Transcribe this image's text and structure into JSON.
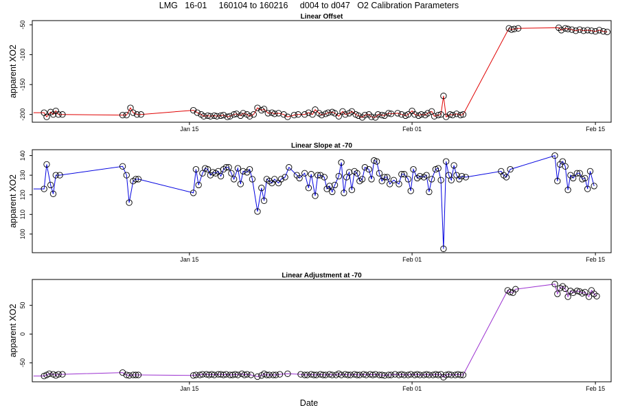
{
  "title": "LMG   16-01     160104 to 160216     d004 to d047   O2 Calibration Parameters",
  "xlabel": "Date",
  "colors": {
    "offset": "#e00000",
    "slope": "#0000e0",
    "adjustment": "#9b30d0"
  },
  "chart_data": [
    {
      "type": "line",
      "title": "Linear Offset",
      "ylabel": "apparent XO2",
      "x_ticks": [
        "Jan 15",
        "Feb 01",
        "Feb 15"
      ],
      "y_ticks": [
        -50,
        -100,
        -150,
        -200
      ],
      "xlim": [
        3.0,
        47.2
      ],
      "ylim": [
        -213,
        -43
      ],
      "grid": false,
      "legend": "none",
      "points": [
        [
          3.1,
          -197
        ],
        [
          3.9,
          -197
        ],
        [
          4.1,
          -204
        ],
        [
          4.4,
          -196
        ],
        [
          4.6,
          -200
        ],
        [
          4.8,
          -194
        ],
        [
          5.0,
          -200
        ],
        [
          5.3,
          -200
        ],
        [
          9.9,
          -201
        ],
        [
          10.2,
          -201
        ],
        [
          10.5,
          -189
        ],
        [
          10.7,
          -197
        ],
        [
          11.0,
          -200
        ],
        [
          11.3,
          -200
        ],
        [
          15.3,
          -193
        ],
        [
          15.6,
          -197
        ],
        [
          15.9,
          -200
        ],
        [
          16.1,
          -203
        ],
        [
          16.4,
          -202
        ],
        [
          16.6,
          -203
        ],
        [
          16.9,
          -202
        ],
        [
          17.1,
          -203
        ],
        [
          17.4,
          -202
        ],
        [
          17.6,
          -201
        ],
        [
          17.9,
          -204
        ],
        [
          18.1,
          -203
        ],
        [
          18.4,
          -200
        ],
        [
          18.6,
          -199
        ],
        [
          18.9,
          -202
        ],
        [
          19.1,
          -198
        ],
        [
          19.4,
          -200
        ],
        [
          19.6,
          -203
        ],
        [
          19.9,
          -200
        ],
        [
          20.2,
          -189
        ],
        [
          20.5,
          -193
        ],
        [
          20.7,
          -191
        ],
        [
          21.0,
          -198
        ],
        [
          21.3,
          -197
        ],
        [
          21.5,
          -199
        ],
        [
          21.8,
          -198
        ],
        [
          22.2,
          -200
        ],
        [
          22.5,
          -204
        ],
        [
          23.0,
          -201
        ],
        [
          23.3,
          -200
        ],
        [
          23.8,
          -200
        ],
        [
          24.1,
          -197
        ],
        [
          24.4,
          -200
        ],
        [
          24.6,
          -192
        ],
        [
          24.9,
          -198
        ],
        [
          25.1,
          -201
        ],
        [
          25.4,
          -199
        ],
        [
          25.6,
          -197
        ],
        [
          25.9,
          -196
        ],
        [
          26.1,
          -198
        ],
        [
          26.4,
          -203
        ],
        [
          26.7,
          -195
        ],
        [
          26.9,
          -200
        ],
        [
          27.2,
          -198
        ],
        [
          27.4,
          -195
        ],
        [
          27.7,
          -200
        ],
        [
          27.9,
          -202
        ],
        [
          28.2,
          -205
        ],
        [
          28.4,
          -201
        ],
        [
          28.7,
          -200
        ],
        [
          28.9,
          -204
        ],
        [
          29.2,
          -205
        ],
        [
          29.4,
          -200
        ],
        [
          29.7,
          -201
        ],
        [
          29.9,
          -202
        ],
        [
          30.2,
          -198
        ],
        [
          30.4,
          -199
        ],
        [
          30.9,
          -198
        ],
        [
          31.2,
          -200
        ],
        [
          31.5,
          -202
        ],
        [
          31.7,
          -200
        ],
        [
          32.0,
          -194
        ],
        [
          32.2,
          -200
        ],
        [
          32.5,
          -202
        ],
        [
          32.7,
          -200
        ],
        [
          33.0,
          -201
        ],
        [
          33.2,
          -198
        ],
        [
          33.5,
          -195
        ],
        [
          33.7,
          -203
        ],
        [
          34.0,
          -201
        ],
        [
          34.2,
          -200
        ],
        [
          34.4,
          -169
        ],
        [
          34.6,
          -204
        ],
        [
          34.9,
          -200
        ],
        [
          35.1,
          -201
        ],
        [
          35.4,
          -199
        ],
        [
          35.7,
          -201
        ],
        [
          35.9,
          -200
        ],
        [
          39.4,
          -56
        ],
        [
          39.6,
          -58
        ],
        [
          39.8,
          -57
        ],
        [
          40.1,
          -56
        ],
        [
          43.2,
          -55
        ],
        [
          43.4,
          -59
        ],
        [
          43.7,
          -56
        ],
        [
          43.9,
          -57
        ],
        [
          44.2,
          -58
        ],
        [
          44.5,
          -60
        ],
        [
          44.8,
          -58
        ],
        [
          45.1,
          -60
        ],
        [
          45.4,
          -59
        ],
        [
          45.7,
          -60
        ],
        [
          46.0,
          -61
        ],
        [
          46.3,
          -59
        ],
        [
          46.6,
          -61
        ],
        [
          46.9,
          -62
        ]
      ]
    },
    {
      "type": "line",
      "title": "Linear Slope at -70",
      "ylabel": "apparent XO2",
      "x_ticks": [
        "Jan 15",
        "Feb 01",
        "Feb 15"
      ],
      "y_ticks": [
        140,
        130,
        120,
        110,
        100
      ],
      "xlim": [
        3.0,
        47.2
      ],
      "ylim": [
        90.5,
        143
      ],
      "grid": false,
      "legend": "none",
      "points": [
        [
          3.1,
          123
        ],
        [
          3.9,
          123
        ],
        [
          4.1,
          135.5
        ],
        [
          4.4,
          125
        ],
        [
          4.6,
          120.5
        ],
        [
          4.8,
          130
        ],
        [
          5.1,
          130
        ],
        [
          9.9,
          134.5
        ],
        [
          10.2,
          130
        ],
        [
          10.4,
          116
        ],
        [
          10.7,
          127
        ],
        [
          10.9,
          128
        ],
        [
          11.1,
          128
        ],
        [
          15.3,
          121
        ],
        [
          15.5,
          133
        ],
        [
          15.7,
          125
        ],
        [
          16.0,
          131
        ],
        [
          16.2,
          133.5
        ],
        [
          16.4,
          133
        ],
        [
          16.6,
          130
        ],
        [
          16.8,
          131.5
        ],
        [
          17.0,
          131
        ],
        [
          17.2,
          132
        ],
        [
          17.4,
          129.5
        ],
        [
          17.6,
          133
        ],
        [
          17.8,
          134
        ],
        [
          18.0,
          134
        ],
        [
          18.2,
          131
        ],
        [
          18.4,
          128
        ],
        [
          18.7,
          133.5
        ],
        [
          18.9,
          125.5
        ],
        [
          19.1,
          132
        ],
        [
          19.4,
          131.5
        ],
        [
          19.6,
          133
        ],
        [
          19.8,
          128
        ],
        [
          20.2,
          111.5
        ],
        [
          20.5,
          123.5
        ],
        [
          20.7,
          117
        ],
        [
          20.9,
          128
        ],
        [
          21.1,
          127
        ],
        [
          21.3,
          126
        ],
        [
          21.5,
          128
        ],
        [
          21.8,
          126
        ],
        [
          22.0,
          128
        ],
        [
          22.3,
          129
        ],
        [
          22.6,
          134
        ],
        [
          23.2,
          130
        ],
        [
          23.4,
          128.5
        ],
        [
          23.8,
          131
        ],
        [
          24.1,
          123.5
        ],
        [
          24.3,
          130.5
        ],
        [
          24.6,
          119.5
        ],
        [
          24.8,
          130
        ],
        [
          25.0,
          130
        ],
        [
          25.3,
          129
        ],
        [
          25.5,
          123
        ],
        [
          25.7,
          124.5
        ],
        [
          25.9,
          121.5
        ],
        [
          26.1,
          125
        ],
        [
          26.4,
          129.5
        ],
        [
          26.6,
          136.5
        ],
        [
          26.8,
          121
        ],
        [
          27.0,
          129
        ],
        [
          27.2,
          131.5
        ],
        [
          27.4,
          122.5
        ],
        [
          27.6,
          132
        ],
        [
          27.8,
          131
        ],
        [
          28.0,
          127
        ],
        [
          28.2,
          128
        ],
        [
          28.4,
          134
        ],
        [
          28.7,
          133
        ],
        [
          28.9,
          128
        ],
        [
          29.1,
          137.5
        ],
        [
          29.3,
          137
        ],
        [
          29.5,
          131
        ],
        [
          29.7,
          127
        ],
        [
          29.9,
          129
        ],
        [
          30.1,
          129
        ],
        [
          30.3,
          125.5
        ],
        [
          30.6,
          127.5
        ],
        [
          31.0,
          125.5
        ],
        [
          31.2,
          130.5
        ],
        [
          31.4,
          130.5
        ],
        [
          31.7,
          128
        ],
        [
          31.9,
          122
        ],
        [
          32.1,
          133
        ],
        [
          32.4,
          128.5
        ],
        [
          32.6,
          129.5
        ],
        [
          32.9,
          129
        ],
        [
          33.1,
          130
        ],
        [
          33.3,
          121.5
        ],
        [
          33.5,
          128
        ],
        [
          33.8,
          133
        ],
        [
          34.0,
          133.5
        ],
        [
          34.2,
          127.5
        ],
        [
          34.4,
          92.5
        ],
        [
          34.6,
          137
        ],
        [
          34.8,
          130
        ],
        [
          35.0,
          127.5
        ],
        [
          35.2,
          135
        ],
        [
          35.4,
          130
        ],
        [
          35.6,
          128
        ],
        [
          35.8,
          129.5
        ],
        [
          36.1,
          129
        ],
        [
          38.8,
          132
        ],
        [
          39.0,
          130
        ],
        [
          39.2,
          129
        ],
        [
          39.5,
          133
        ],
        [
          42.9,
          140
        ],
        [
          43.1,
          127
        ],
        [
          43.3,
          135.5
        ],
        [
          43.5,
          137
        ],
        [
          43.7,
          134.5
        ],
        [
          43.9,
          122.5
        ],
        [
          44.1,
          130
        ],
        [
          44.3,
          128.5
        ],
        [
          44.6,
          131
        ],
        [
          44.8,
          131
        ],
        [
          45.0,
          128
        ],
        [
          45.2,
          128.5
        ],
        [
          45.4,
          123
        ],
        [
          45.6,
          132
        ],
        [
          45.9,
          124.5
        ]
      ]
    },
    {
      "type": "line",
      "title": "Linear Adjustment at -70",
      "ylabel": "apparent XO2",
      "x_ticks": [
        "Jan 15",
        "Feb 01",
        "Feb 15"
      ],
      "y_ticks": [
        50,
        0,
        -50
      ],
      "xlim": [
        3.0,
        47.2
      ],
      "ylim": [
        -83,
        95
      ],
      "grid": false,
      "legend": "none",
      "points": [
        [
          3.1,
          -73
        ],
        [
          3.9,
          -73
        ],
        [
          4.1,
          -71
        ],
        [
          4.3,
          -69
        ],
        [
          4.6,
          -70
        ],
        [
          4.8,
          -72
        ],
        [
          5.0,
          -70
        ],
        [
          5.3,
          -70
        ],
        [
          9.9,
          -67
        ],
        [
          10.2,
          -71
        ],
        [
          10.4,
          -72
        ],
        [
          10.7,
          -71
        ],
        [
          10.9,
          -71
        ],
        [
          11.1,
          -71
        ],
        [
          15.3,
          -72
        ],
        [
          15.5,
          -71
        ],
        [
          15.8,
          -71
        ],
        [
          16.0,
          -70
        ],
        [
          16.3,
          -70
        ],
        [
          16.5,
          -71
        ],
        [
          16.7,
          -70
        ],
        [
          16.9,
          -71
        ],
        [
          17.2,
          -70
        ],
        [
          17.4,
          -70
        ],
        [
          17.6,
          -71
        ],
        [
          17.8,
          -70
        ],
        [
          18.1,
          -71
        ],
        [
          18.3,
          -71
        ],
        [
          18.5,
          -70
        ],
        [
          18.7,
          -71
        ],
        [
          19.0,
          -69
        ],
        [
          19.2,
          -71
        ],
        [
          19.4,
          -70
        ],
        [
          19.7,
          -71
        ],
        [
          20.2,
          -74
        ],
        [
          20.5,
          -72
        ],
        [
          20.7,
          -69
        ],
        [
          20.9,
          -71
        ],
        [
          21.1,
          -71
        ],
        [
          21.4,
          -71
        ],
        [
          21.6,
          -71
        ],
        [
          21.9,
          -70
        ],
        [
          22.5,
          -69
        ],
        [
          23.5,
          -70
        ],
        [
          23.8,
          -71
        ],
        [
          24.0,
          -71
        ],
        [
          24.3,
          -70
        ],
        [
          24.5,
          -71
        ],
        [
          24.7,
          -71
        ],
        [
          25.0,
          -70
        ],
        [
          25.2,
          -71
        ],
        [
          25.4,
          -71
        ],
        [
          25.7,
          -70
        ],
        [
          25.9,
          -71
        ],
        [
          26.2,
          -71
        ],
        [
          26.4,
          -69
        ],
        [
          26.6,
          -71
        ],
        [
          26.9,
          -70
        ],
        [
          27.1,
          -71
        ],
        [
          27.3,
          -71
        ],
        [
          27.6,
          -70
        ],
        [
          27.8,
          -71
        ],
        [
          28.0,
          -71
        ],
        [
          28.3,
          -70
        ],
        [
          28.5,
          -71
        ],
        [
          28.8,
          -70
        ],
        [
          29.0,
          -71
        ],
        [
          29.2,
          -70
        ],
        [
          29.5,
          -71
        ],
        [
          29.7,
          -71
        ],
        [
          29.9,
          -72
        ],
        [
          30.2,
          -71
        ],
        [
          30.4,
          -71
        ],
        [
          30.7,
          -70
        ],
        [
          31.0,
          -71
        ],
        [
          31.2,
          -70
        ],
        [
          31.4,
          -71
        ],
        [
          31.7,
          -71
        ],
        [
          31.9,
          -70
        ],
        [
          32.2,
          -71
        ],
        [
          32.4,
          -70
        ],
        [
          32.6,
          -71
        ],
        [
          32.9,
          -71
        ],
        [
          33.1,
          -70
        ],
        [
          33.3,
          -71
        ],
        [
          33.6,
          -71
        ],
        [
          33.8,
          -70
        ],
        [
          34.0,
          -71
        ],
        [
          34.2,
          -70
        ],
        [
          34.4,
          -75
        ],
        [
          34.6,
          -71
        ],
        [
          34.8,
          -70
        ],
        [
          35.0,
          -71
        ],
        [
          35.3,
          -71
        ],
        [
          35.5,
          -70
        ],
        [
          35.7,
          -71
        ],
        [
          35.9,
          -71
        ],
        [
          39.3,
          76
        ],
        [
          39.5,
          73
        ],
        [
          39.7,
          72
        ],
        [
          39.9,
          78
        ],
        [
          42.9,
          87
        ],
        [
          43.1,
          70
        ],
        [
          43.3,
          80
        ],
        [
          43.5,
          83
        ],
        [
          43.7,
          79
        ],
        [
          43.9,
          65
        ],
        [
          44.1,
          75
        ],
        [
          44.3,
          72
        ],
        [
          44.6,
          75
        ],
        [
          44.8,
          74
        ],
        [
          45.0,
          71
        ],
        [
          45.2,
          73
        ],
        [
          45.5,
          65
        ],
        [
          45.7,
          76
        ],
        [
          45.9,
          70
        ],
        [
          46.1,
          66
        ]
      ]
    }
  ]
}
